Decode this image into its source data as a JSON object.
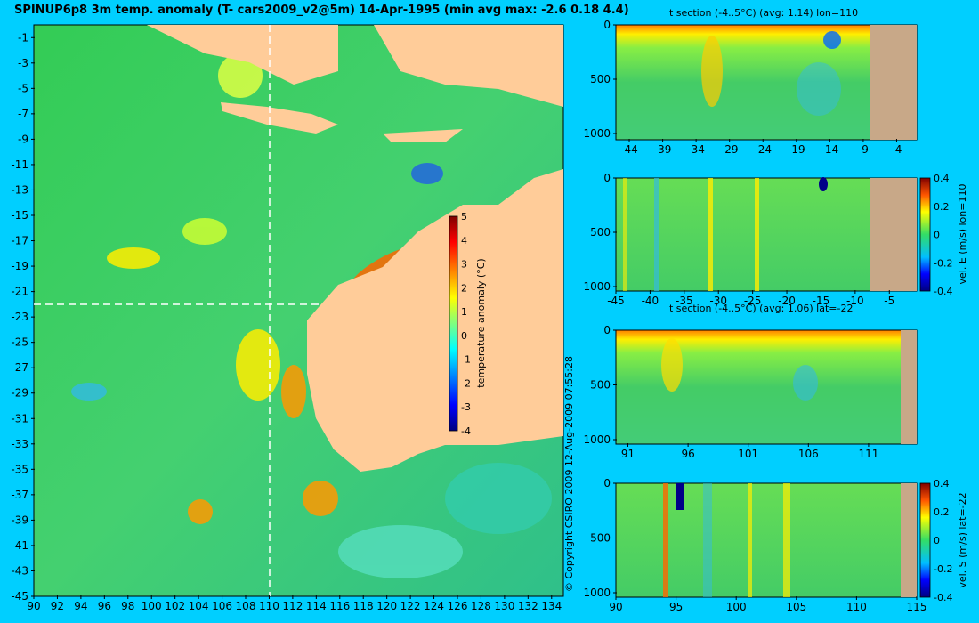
{
  "main_title": "SPINUP6p8 3m temp. anomaly (T- cars2009_v2@5m) 14-Apr-1995 (min avg max: -2.6 0.18 4.4)",
  "copyright": "© Copyright CSIRO 2009  12-Aug-2009 07:55:28",
  "colors": {
    "background": "#00cfff",
    "land": "#ffcc99",
    "seafloor": "#c8a888",
    "colormap": [
      "#00007f",
      "#0000ff",
      "#007fff",
      "#00ffff",
      "#7fff7f",
      "#ffff00",
      "#ff7f00",
      "#ff0000",
      "#7f0000"
    ]
  },
  "chart_data": [
    {
      "type": "heatmap",
      "name": "map",
      "title": "SPINUP6p8 3m temp. anomaly (T- cars2009_v2@5m) 14-Apr-1995 (min avg max: -2.6 0.18 4.4)",
      "xlabel": "",
      "ylabel": "",
      "xlim": [
        90,
        135
      ],
      "ylim": [
        -45,
        0
      ],
      "xticks": [
        "90",
        "92",
        "94",
        "96",
        "98",
        "100",
        "102",
        "104",
        "106",
        "108",
        "110",
        "112",
        "114",
        "116",
        "118",
        "120",
        "122",
        "124",
        "126",
        "128",
        "130",
        "132",
        "134"
      ],
      "yticks": [
        "-1",
        "-3",
        "-5",
        "-7",
        "-9",
        "-11",
        "-13",
        "-15",
        "-17",
        "-19",
        "-21",
        "-23",
        "-25",
        "-27",
        "-29",
        "-31",
        "-33",
        "-35",
        "-37",
        "-39",
        "-41",
        "-43",
        "-45"
      ],
      "section_lines": {
        "lon": 110,
        "lat": -22
      },
      "colorbar": {
        "label": "temperature anomaly (°C)",
        "ticks": [
          "5",
          "4",
          "3",
          "2",
          "1",
          "0",
          "-1",
          "-2",
          "-3",
          "-4"
        ],
        "range": [
          -4,
          5
        ]
      }
    },
    {
      "type": "heatmap",
      "name": "t-section-lon",
      "title": "t section (-4..5°C) (avg: 1.14) lon=110",
      "xlim": [
        -46,
        -1
      ],
      "ylim": [
        1000,
        0
      ],
      "xticks": [
        "-44",
        "-39",
        "-34",
        "-29",
        "-24",
        "-19",
        "-14",
        "-9",
        "-4"
      ],
      "yticks": [
        "0",
        "500",
        "1000"
      ]
    },
    {
      "type": "heatmap",
      "name": "vel-e-lon",
      "title": "",
      "xlim": [
        -45,
        -1
      ],
      "ylim": [
        1000,
        0
      ],
      "xticks": [
        "-45",
        "-40",
        "-35",
        "-30",
        "-25",
        "-20",
        "-15",
        "-10",
        "-5"
      ],
      "yticks": [
        "0",
        "500",
        "1000"
      ],
      "colorbar": {
        "label": "vel. E (m/s) lon=110",
        "ticks": [
          "0.4",
          "0.2",
          "0",
          "-0.2",
          "-0.4"
        ],
        "range": [
          -0.4,
          0.4
        ]
      }
    },
    {
      "type": "heatmap",
      "name": "t-section-lat",
      "title": "t section (-4..5°C) (avg: 1.06) lat=-22",
      "xlim": [
        90,
        115
      ],
      "ylim": [
        1000,
        0
      ],
      "xticks": [
        "91",
        "96",
        "101",
        "106",
        "111"
      ],
      "yticks": [
        "0",
        "500",
        "1000"
      ]
    },
    {
      "type": "heatmap",
      "name": "vel-s-lat",
      "title": "",
      "xlim": [
        90,
        115
      ],
      "ylim": [
        1000,
        0
      ],
      "xticks": [
        "90",
        "95",
        "100",
        "105",
        "110",
        "115"
      ],
      "yticks": [
        "0",
        "500",
        "1000"
      ],
      "colorbar": {
        "label": "vel. S (m/s) lat=-22",
        "ticks": [
          "0.4",
          "0.2",
          "0",
          "-0.2",
          "-0.4"
        ],
        "range": [
          -0.4,
          0.4
        ]
      }
    }
  ]
}
